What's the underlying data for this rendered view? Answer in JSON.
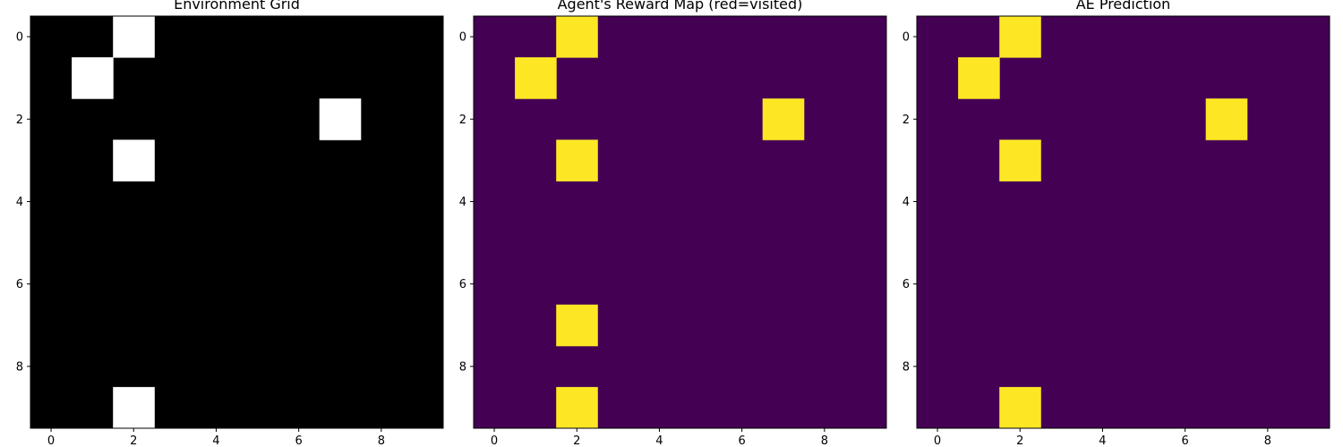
{
  "chart_data": [
    {
      "type": "heatmap",
      "title": "Environment Grid",
      "rows": 10,
      "cols": 10,
      "grid": false,
      "colors": {
        "low": "#000000",
        "high": "#ffffff"
      },
      "x_ticks": [
        0,
        2,
        4,
        6,
        8
      ],
      "y_ticks": [
        0,
        2,
        4,
        6,
        8
      ],
      "cells": [
        {
          "row": 0,
          "col": 2,
          "value": 1
        },
        {
          "row": 1,
          "col": 1,
          "value": 1
        },
        {
          "row": 2,
          "col": 7,
          "value": 1
        },
        {
          "row": 3,
          "col": 2,
          "value": 1
        },
        {
          "row": 9,
          "col": 2,
          "value": 1
        }
      ]
    },
    {
      "type": "heatmap",
      "title": "Agent's Reward Map (red=visited)",
      "rows": 10,
      "cols": 10,
      "grid": false,
      "colors": {
        "low": "#440154",
        "high": "#fde725"
      },
      "x_ticks": [
        0,
        2,
        4,
        6,
        8
      ],
      "y_ticks": [
        0,
        2,
        4,
        6,
        8
      ],
      "cells": [
        {
          "row": 0,
          "col": 2,
          "value": 1
        },
        {
          "row": 1,
          "col": 1,
          "value": 1
        },
        {
          "row": 2,
          "col": 7,
          "value": 1
        },
        {
          "row": 3,
          "col": 2,
          "value": 1
        },
        {
          "row": 7,
          "col": 2,
          "value": 1
        },
        {
          "row": 9,
          "col": 2,
          "value": 1
        }
      ]
    },
    {
      "type": "heatmap",
      "title": "AE Prediction",
      "rows": 10,
      "cols": 10,
      "grid": false,
      "colors": {
        "low": "#440154",
        "high": "#fde725"
      },
      "x_ticks": [
        0,
        2,
        4,
        6,
        8
      ],
      "y_ticks": [
        0,
        2,
        4,
        6,
        8
      ],
      "cells": [
        {
          "row": 0,
          "col": 2,
          "value": 1
        },
        {
          "row": 1,
          "col": 1,
          "value": 1
        },
        {
          "row": 2,
          "col": 7,
          "value": 1
        },
        {
          "row": 3,
          "col": 2,
          "value": 1
        },
        {
          "row": 9,
          "col": 2,
          "value": 1
        }
      ]
    }
  ]
}
